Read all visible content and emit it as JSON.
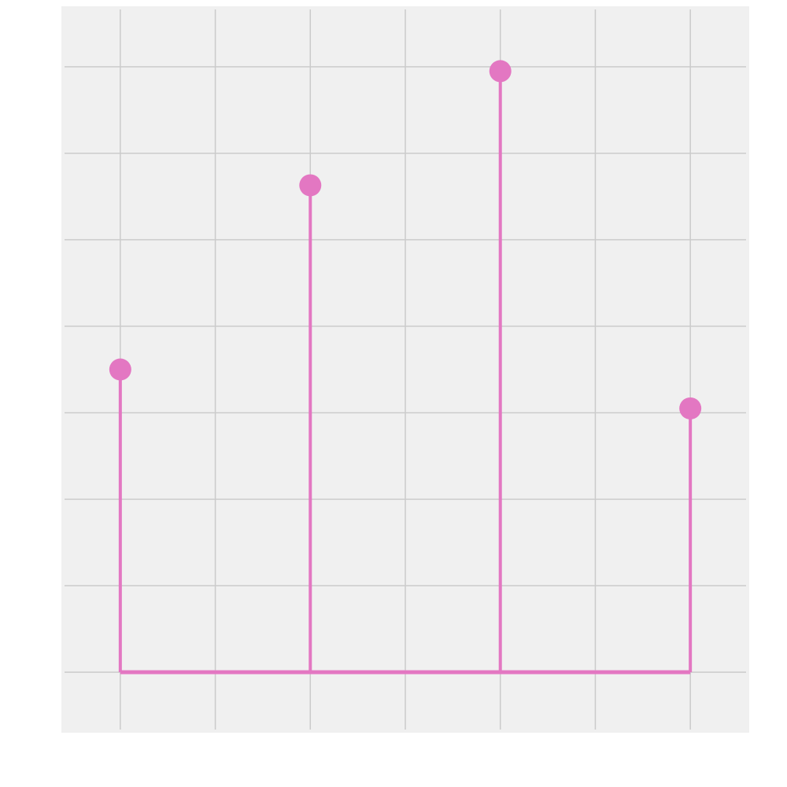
{
  "chart_data": {
    "type": "stem",
    "x": [
      0,
      1,
      2,
      3
    ],
    "values": [
      3.5,
      5.63,
      6.95,
      3.05
    ],
    "baseline": 0,
    "xlim": [
      -0.31,
      3.31
    ],
    "ylim": [
      -0.7,
      7.7
    ],
    "x_gridlines": [
      0,
      0.5,
      1,
      1.5,
      2,
      2.5,
      3
    ],
    "y_gridlines": [
      0,
      1,
      2,
      3,
      4,
      5,
      6,
      7
    ],
    "grid": true,
    "title": "",
    "xlabel": "",
    "ylabel": "",
    "colors": {
      "stem": "#e377c2",
      "panel": "#f0f0f0",
      "grid": "#cbcbcb",
      "background": "#ffffff"
    }
  }
}
